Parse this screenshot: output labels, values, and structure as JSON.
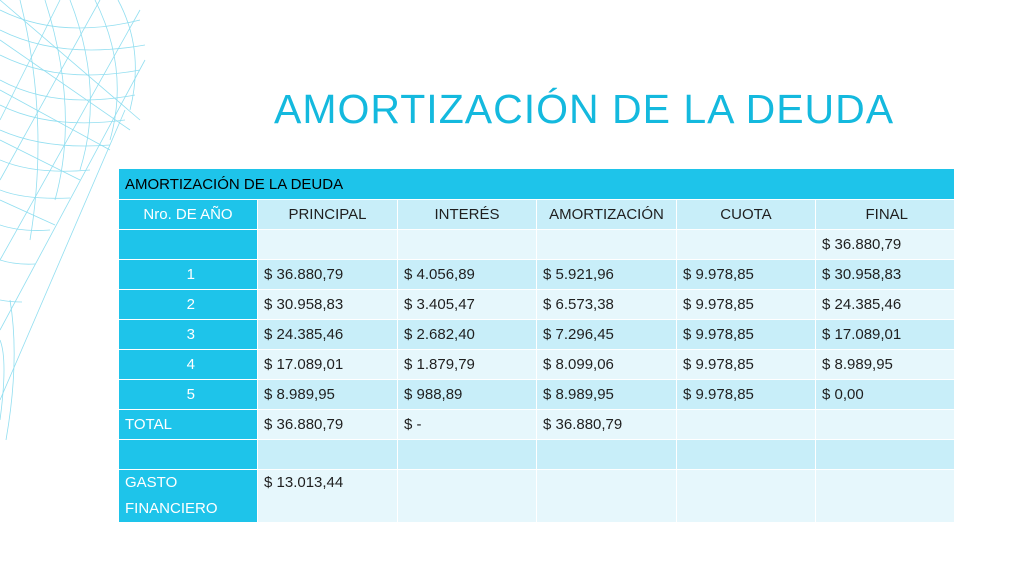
{
  "title": "AMORTIZACIÓN DE LA DEUDA",
  "table": {
    "caption": "AMORTIZACIÓN DE LA DEUDA",
    "headers": [
      "Nro. DE AÑO",
      "PRINCIPAL",
      "INTERÉS",
      "AMORTIZACIÓN",
      "CUOTA",
      "FINAL"
    ],
    "rows": [
      [
        "",
        "",
        "",
        "",
        "",
        "$ 36.880,79"
      ],
      [
        "1",
        "$ 36.880,79",
        "$ 4.056,89",
        "$ 5.921,96",
        "$ 9.978,85",
        "$ 30.958,83"
      ],
      [
        "2",
        "$ 30.958,83",
        "$ 3.405,47",
        "$ 6.573,38",
        "$ 9.978,85",
        "$ 24.385,46"
      ],
      [
        "3",
        "$ 24.385,46",
        "$ 2.682,40",
        "$ 7.296,45",
        "$ 9.978,85",
        "$ 17.089,01"
      ],
      [
        "4",
        "$ 17.089,01",
        "$ 1.879,79",
        "$ 8.099,06",
        "$ 9.978,85",
        "$ 8.989,95"
      ],
      [
        "5",
        "$ 8.989,95",
        "$ 988,89",
        "$ 8.989,95",
        "$ 9.978,85",
        "$ 0,00"
      ],
      [
        "TOTAL",
        "$ 36.880,79",
        "$ -",
        "$ 36.880,79",
        "",
        ""
      ],
      [
        "",
        "",
        "",
        "",
        "",
        ""
      ],
      [
        "GASTO FINANCIERO",
        "$ 13.013,44",
        "",
        "",
        "",
        ""
      ]
    ]
  },
  "colors": {
    "accent": "#1ec4ea",
    "title": "#14b9de",
    "row_light": "#e6f7fc",
    "row_mid": "#c8eef9"
  },
  "decoration": {
    "icon": "wireframe-mesh-decoration-icon"
  }
}
